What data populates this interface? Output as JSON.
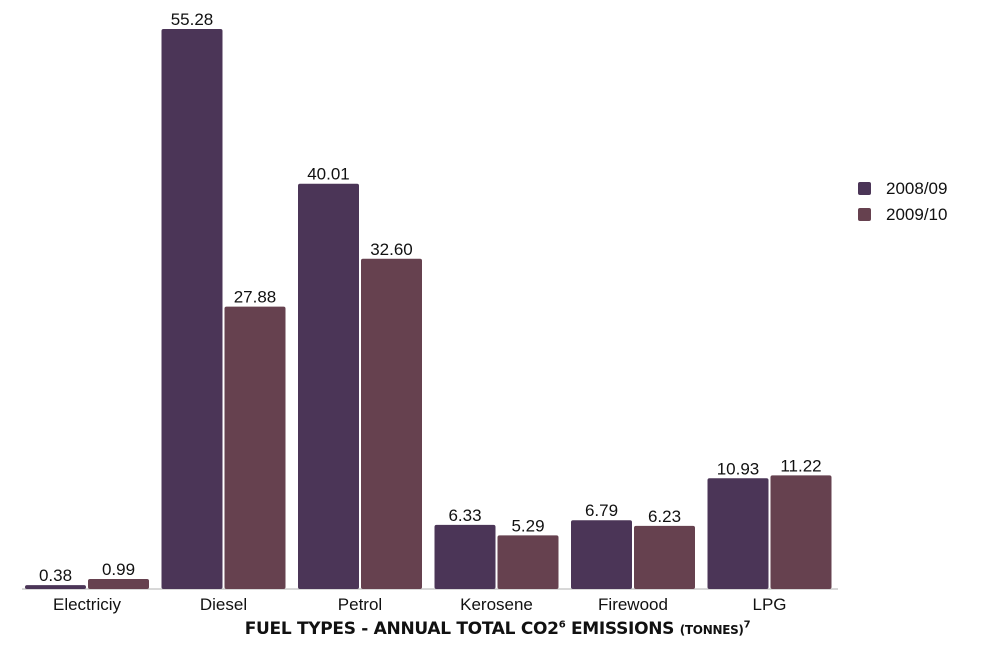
{
  "chart_data": {
    "type": "bar",
    "categories": [
      "Electriciy",
      "Diesel",
      "Petrol",
      "Kerosene",
      "Firewood",
      "LPG"
    ],
    "series": [
      {
        "name": "2008/09",
        "values": [
          0.38,
          55.28,
          40.01,
          6.33,
          6.79,
          10.93
        ],
        "labels": [
          "0.38",
          "55.28",
          "40.01",
          "6.33",
          "6.79",
          "10.93"
        ],
        "color": "#4b3557"
      },
      {
        "name": "2009/10",
        "values": [
          0.99,
          27.88,
          32.6,
          5.29,
          6.23,
          11.22
        ],
        "labels": [
          "0.99",
          "27.88",
          "32.60",
          "5.29",
          "6.23",
          "11.22"
        ],
        "color": "#66414f"
      }
    ],
    "title": {
      "main": "FUEL TYPES - ANNUAL TOTAL CO2",
      "sup1": "6",
      "mid": " EMISSIONS ",
      "unit": "(TONNES)",
      "sup2": "7"
    },
    "xlabel": "",
    "ylabel": "",
    "ylim": [
      0,
      55.28
    ],
    "grid": false,
    "legend_position": "right",
    "axis_color": "#cccccc"
  }
}
